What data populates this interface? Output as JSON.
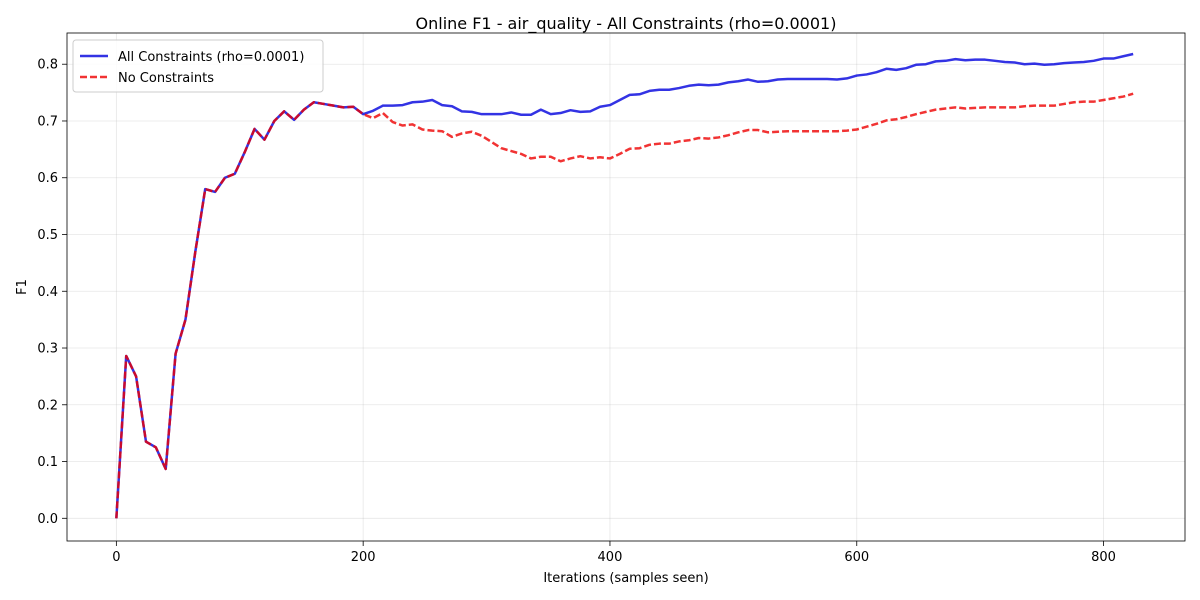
{
  "chart_data": {
    "type": "line",
    "title": "Online F1 - air_quality - All Constraints (rho=0.0001)",
    "xlabel": "Iterations (samples seen)",
    "ylabel": "F1",
    "xlim": [
      -40,
      866
    ],
    "ylim": [
      -0.04,
      0.855
    ],
    "xticks": [
      0,
      200,
      400,
      600,
      800
    ],
    "yticks": [
      0.0,
      0.1,
      0.2,
      0.3,
      0.4,
      0.5,
      0.6,
      0.7,
      0.8
    ],
    "xtick_labels": [
      "0",
      "200",
      "400",
      "600",
      "800"
    ],
    "ytick_labels": [
      "0.0",
      "0.1",
      "0.2",
      "0.3",
      "0.4",
      "0.5",
      "0.6",
      "0.7",
      "0.8"
    ],
    "grid": true,
    "legend_position": "upper-left",
    "series": [
      {
        "name": "All Constraints (rho=0.0001)",
        "color": "#0000dd",
        "style": "solid",
        "x": [
          0,
          8,
          16,
          24,
          32,
          40,
          48,
          56,
          64,
          72,
          80,
          88,
          96,
          104,
          112,
          120,
          128,
          136,
          144,
          152,
          160,
          168,
          176,
          184,
          192,
          200,
          208,
          216,
          224,
          232,
          240,
          248,
          256,
          264,
          272,
          280,
          288,
          296,
          304,
          312,
          320,
          328,
          336,
          344,
          352,
          360,
          368,
          376,
          384,
          392,
          400,
          408,
          416,
          424,
          432,
          440,
          448,
          456,
          464,
          472,
          480,
          488,
          496,
          504,
          512,
          520,
          528,
          536,
          544,
          552,
          560,
          568,
          576,
          584,
          592,
          600,
          608,
          616,
          624,
          632,
          640,
          648,
          656,
          664,
          672,
          680,
          688,
          696,
          704,
          712,
          720,
          728,
          736,
          744,
          752,
          760,
          768,
          776,
          784,
          792,
          800,
          808,
          816,
          824
        ],
        "y": [
          0.0,
          0.286,
          0.25,
          0.135,
          0.125,
          0.087,
          0.29,
          0.35,
          0.47,
          0.58,
          0.575,
          0.6,
          0.607,
          0.645,
          0.686,
          0.667,
          0.7,
          0.717,
          0.702,
          0.72,
          0.733,
          0.73,
          0.727,
          0.724,
          0.725,
          0.712,
          0.718,
          0.727,
          0.727,
          0.728,
          0.733,
          0.734,
          0.737,
          0.728,
          0.726,
          0.717,
          0.716,
          0.712,
          0.712,
          0.712,
          0.715,
          0.711,
          0.711,
          0.72,
          0.712,
          0.714,
          0.719,
          0.716,
          0.717,
          0.725,
          0.728,
          0.737,
          0.746,
          0.747,
          0.753,
          0.755,
          0.755,
          0.758,
          0.762,
          0.764,
          0.763,
          0.764,
          0.768,
          0.77,
          0.773,
          0.769,
          0.77,
          0.773,
          0.774,
          0.774,
          0.774,
          0.774,
          0.774,
          0.773,
          0.775,
          0.78,
          0.782,
          0.786,
          0.792,
          0.79,
          0.793,
          0.799,
          0.8,
          0.805,
          0.806,
          0.809,
          0.807,
          0.808,
          0.808,
          0.806,
          0.804,
          0.803,
          0.8,
          0.801,
          0.799,
          0.8,
          0.802,
          0.803,
          0.804,
          0.806,
          0.81,
          0.81,
          0.814,
          0.818
        ]
      },
      {
        "name": "No Constraints",
        "color": "#ee0000",
        "style": "dashed",
        "x": [
          0,
          8,
          16,
          24,
          32,
          40,
          48,
          56,
          64,
          72,
          80,
          88,
          96,
          104,
          112,
          120,
          128,
          136,
          144,
          152,
          160,
          168,
          176,
          184,
          192,
          200,
          208,
          216,
          224,
          232,
          240,
          248,
          256,
          264,
          272,
          280,
          288,
          296,
          304,
          312,
          320,
          328,
          336,
          344,
          352,
          360,
          368,
          376,
          384,
          392,
          400,
          408,
          416,
          424,
          432,
          440,
          448,
          456,
          464,
          472,
          480,
          488,
          496,
          504,
          512,
          520,
          528,
          536,
          544,
          552,
          560,
          568,
          576,
          584,
          592,
          600,
          608,
          616,
          624,
          632,
          640,
          648,
          656,
          664,
          672,
          680,
          688,
          696,
          704,
          712,
          720,
          728,
          736,
          744,
          752,
          760,
          768,
          776,
          784,
          792,
          800,
          808,
          816,
          824
        ],
        "y": [
          0.0,
          0.286,
          0.25,
          0.135,
          0.125,
          0.087,
          0.29,
          0.35,
          0.47,
          0.58,
          0.575,
          0.6,
          0.607,
          0.645,
          0.686,
          0.667,
          0.7,
          0.717,
          0.702,
          0.72,
          0.733,
          0.73,
          0.727,
          0.724,
          0.725,
          0.712,
          0.705,
          0.714,
          0.698,
          0.692,
          0.694,
          0.685,
          0.683,
          0.682,
          0.672,
          0.678,
          0.681,
          0.674,
          0.663,
          0.652,
          0.647,
          0.642,
          0.634,
          0.637,
          0.637,
          0.629,
          0.634,
          0.638,
          0.634,
          0.636,
          0.634,
          0.642,
          0.651,
          0.652,
          0.658,
          0.66,
          0.66,
          0.664,
          0.666,
          0.67,
          0.669,
          0.671,
          0.675,
          0.68,
          0.684,
          0.684,
          0.68,
          0.681,
          0.682,
          0.682,
          0.682,
          0.682,
          0.682,
          0.682,
          0.683,
          0.685,
          0.69,
          0.695,
          0.701,
          0.703,
          0.707,
          0.712,
          0.716,
          0.72,
          0.722,
          0.724,
          0.722,
          0.723,
          0.724,
          0.724,
          0.724,
          0.724,
          0.726,
          0.727,
          0.727,
          0.727,
          0.73,
          0.733,
          0.734,
          0.734,
          0.737,
          0.74,
          0.743,
          0.748
        ]
      }
    ]
  }
}
